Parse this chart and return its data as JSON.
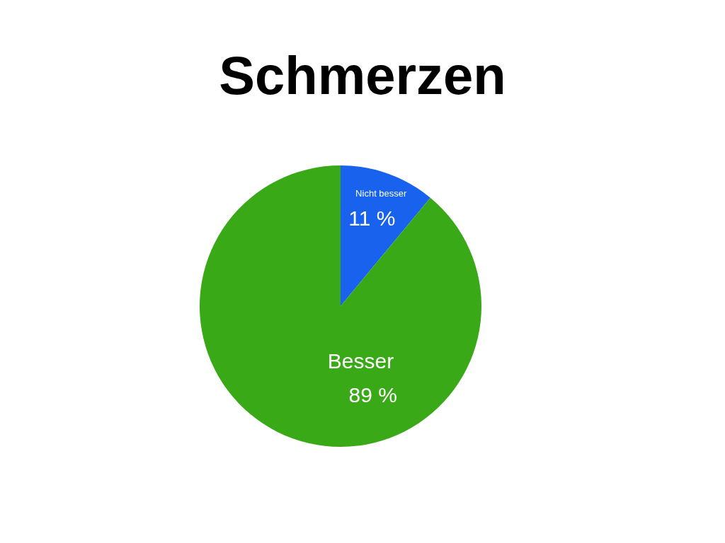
{
  "chart_data": {
    "type": "pie",
    "title": "Schmerzen",
    "categories": [
      "Nicht besser",
      "Besser"
    ],
    "values": [
      11,
      89
    ],
    "colors": [
      "#1862ee",
      "#39a918"
    ],
    "value_labels": [
      "11 %",
      "89 %"
    ]
  }
}
